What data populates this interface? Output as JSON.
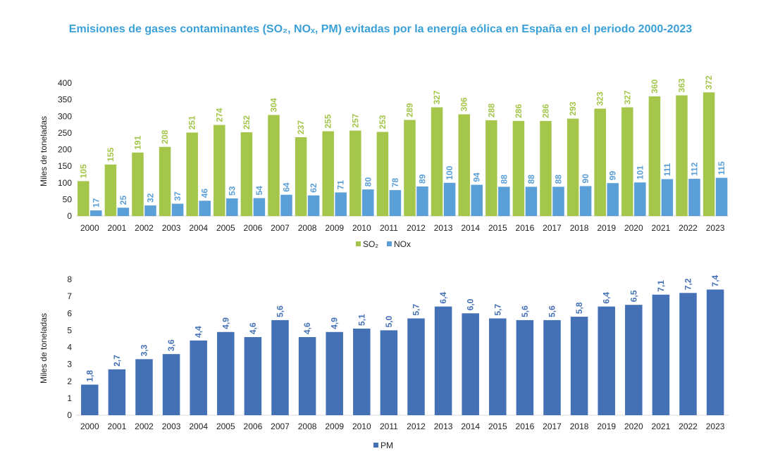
{
  "title": "Emisiones de gases contaminantes (SO₂, NOₓ, PM) evitadas por la energía eólica en España en el periodo 2000-2023",
  "chart_data": [
    {
      "type": "bar",
      "categories": [
        "2000",
        "2001",
        "2002",
        "2003",
        "2004",
        "2005",
        "2006",
        "2007",
        "2008",
        "2009",
        "2010",
        "2011",
        "2012",
        "2013",
        "2014",
        "2015",
        "2016",
        "2017",
        "2018",
        "2019",
        "2020",
        "2021",
        "2022",
        "2023"
      ],
      "series": [
        {
          "name": "SO₂",
          "color": "#a4c64a",
          "values": [
            105,
            155,
            191,
            208,
            251,
            274,
            252,
            304,
            237,
            255,
            257,
            253,
            289,
            327,
            306,
            288,
            286,
            286,
            293,
            323,
            327,
            360,
            363,
            372
          ],
          "labels": [
            "105",
            "155",
            "191",
            "208",
            "251",
            "274",
            "252",
            "304",
            "237",
            "255",
            "257",
            "253",
            "289",
            "327",
            "306",
            "288",
            "286",
            "286",
            "293",
            "323",
            "327",
            "360",
            "363",
            "372"
          ]
        },
        {
          "name": "NOx",
          "color": "#5a9fd8",
          "values": [
            17,
            25,
            32,
            37,
            46,
            53,
            54,
            64,
            62,
            71,
            80,
            78,
            89,
            100,
            94,
            88,
            88,
            88,
            90,
            99,
            101,
            111,
            112,
            115
          ],
          "labels": [
            "17",
            "25",
            "32",
            "37",
            "46",
            "53",
            "54",
            "64",
            "62",
            "71",
            "80",
            "78",
            "89",
            "100",
            "94",
            "88",
            "88",
            "88",
            "90",
            "99",
            "101",
            "111",
            "112",
            "115"
          ]
        }
      ],
      "ylabel": "Miles de toneladas",
      "ylim": [
        0,
        400
      ],
      "yticks": [
        "0",
        "50",
        "100",
        "150",
        "200",
        "250",
        "300",
        "350",
        "400"
      ],
      "legend": "bottom-center",
      "grid": false
    },
    {
      "type": "bar",
      "categories": [
        "2000",
        "2001",
        "2002",
        "2003",
        "2004",
        "2005",
        "2006",
        "2007",
        "2008",
        "2009",
        "2010",
        "2011",
        "2012",
        "2013",
        "2014",
        "2015",
        "2016",
        "2017",
        "2018",
        "2019",
        "2020",
        "2021",
        "2022",
        "2023"
      ],
      "series": [
        {
          "name": "PM",
          "color": "#4470b6",
          "values": [
            1.8,
            2.7,
            3.3,
            3.6,
            4.4,
            4.9,
            4.6,
            5.6,
            4.6,
            4.9,
            5.1,
            5.0,
            5.7,
            6.4,
            6.0,
            5.7,
            5.6,
            5.6,
            5.8,
            6.4,
            6.5,
            7.1,
            7.2,
            7.4
          ],
          "labels": [
            "1,8",
            "2,7",
            "3,3",
            "3,6",
            "4,4",
            "4,9",
            "4,6",
            "5,6",
            "4,6",
            "4,9",
            "5,1",
            "5,0",
            "5,7",
            "6,4",
            "6,0",
            "5,7",
            "5,6",
            "5,6",
            "5,8",
            "6,4",
            "6,5",
            "7,1",
            "7,2",
            "7,4"
          ]
        }
      ],
      "ylabel": "Miles de toneladas",
      "ylim": [
        0,
        8
      ],
      "yticks": [
        "0",
        "1",
        "2",
        "3",
        "4",
        "5",
        "6",
        "7",
        "8"
      ],
      "legend": "bottom-center",
      "grid": false
    }
  ]
}
